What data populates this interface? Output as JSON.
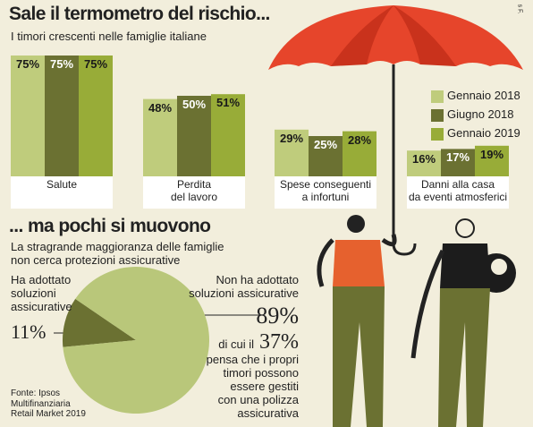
{
  "chart_data": [
    {
      "type": "bar",
      "title": "Sale il termometro del rischio...",
      "subtitle": "I timori crescenti nelle famiglie italiane",
      "categories": [
        "Salute",
        "Perdita\ndel lavoro",
        "Spese conseguenti\na infortuni",
        "Danni alla casa\nda eventi atmosferici"
      ],
      "series": [
        {
          "name": "Gennaio 2018",
          "color": "#bfcc7c",
          "values": [
            75,
            48,
            29,
            16
          ],
          "value_labels": [
            "75%",
            "48%",
            "29%",
            "16%"
          ]
        },
        {
          "name": "Giugno 2018",
          "color": "#6b7132",
          "values": [
            75,
            50,
            25,
            17
          ],
          "value_labels": [
            "75%",
            "50%",
            "25%",
            "17%"
          ]
        },
        {
          "name": "Gennaio 2019",
          "color": "#98ac38",
          "values": [
            75,
            51,
            28,
            19
          ],
          "value_labels": [
            "75%",
            "51%",
            "28%",
            "19%"
          ]
        }
      ],
      "credit": "s F."
    },
    {
      "type": "pie",
      "title": "... ma pochi si muovono",
      "subtitle": "La stragrande maggioranza delle famiglie\nnon cerca protezioni assicurative",
      "categories": [
        "Ha adottato\nsoluzioni\nassicurative",
        "Non ha adottato\nsoluzioni assicurative"
      ],
      "values": [
        11,
        89
      ],
      "value_labels": [
        "11%",
        "89%"
      ],
      "colors": [
        "#6b7132",
        "#b9c77a"
      ],
      "note_prefix": "di cui il",
      "note_value": "37%",
      "note_text": "pensa che i propri\ntimori possono\nessere gestiti\ncon una polizza\nassicurativa",
      "source": "Fonte: Ipsos\nMultifinanziaria\nRetail Market 2019"
    }
  ]
}
